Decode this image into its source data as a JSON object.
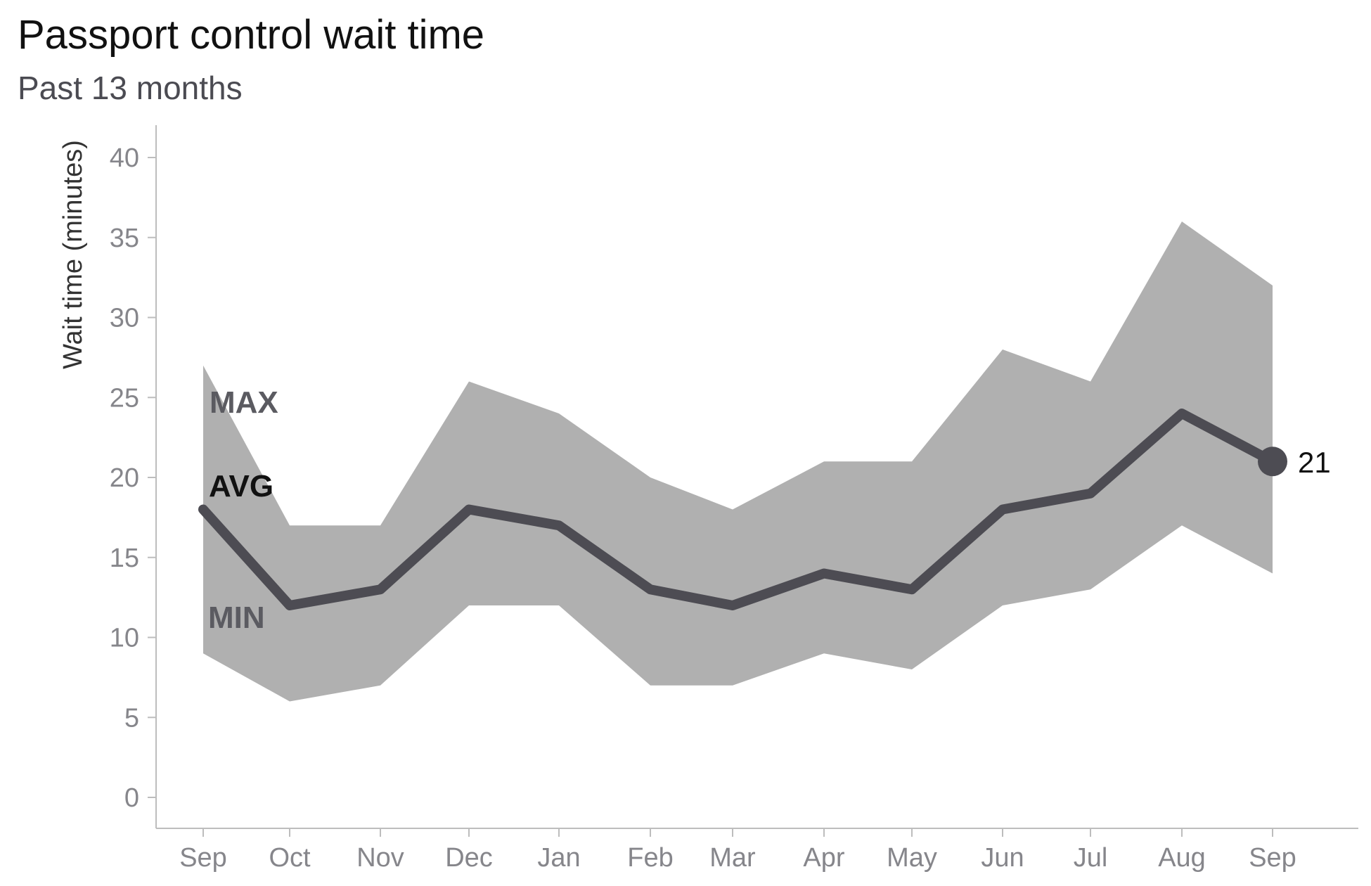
{
  "chart_data": {
    "type": "area",
    "title": "Passport control wait time",
    "subtitle": "Past 13 months",
    "xlabel": "",
    "ylabel": "Wait time (minutes)",
    "categories": [
      "Sep",
      "Oct",
      "Nov",
      "Dec",
      "Jan",
      "Feb",
      "Mar",
      "Apr",
      "May",
      "Jun",
      "Jul",
      "Aug",
      "Sep"
    ],
    "series": [
      {
        "name": "MAX",
        "values": [
          27,
          17,
          17,
          26,
          24,
          20,
          18,
          21,
          21,
          28,
          26,
          36,
          32
        ]
      },
      {
        "name": "AVG",
        "values": [
          18,
          12,
          13,
          18,
          17,
          13,
          12,
          14,
          13,
          18,
          19,
          24,
          21
        ]
      },
      {
        "name": "MIN",
        "values": [
          9,
          6,
          7,
          12,
          12,
          7,
          7,
          9,
          8,
          12,
          13,
          17,
          14
        ]
      }
    ],
    "yticks": [
      0,
      5,
      10,
      15,
      20,
      25,
      30,
      35,
      40
    ],
    "ylim": [
      -2,
      42
    ],
    "end_label": "21",
    "grid": false,
    "colors": {
      "band": "#b0b0b0",
      "line": "#4d4c53",
      "max_label": "#5b5b61",
      "avg_label": "#111111",
      "min_label": "#5b5b61"
    }
  }
}
